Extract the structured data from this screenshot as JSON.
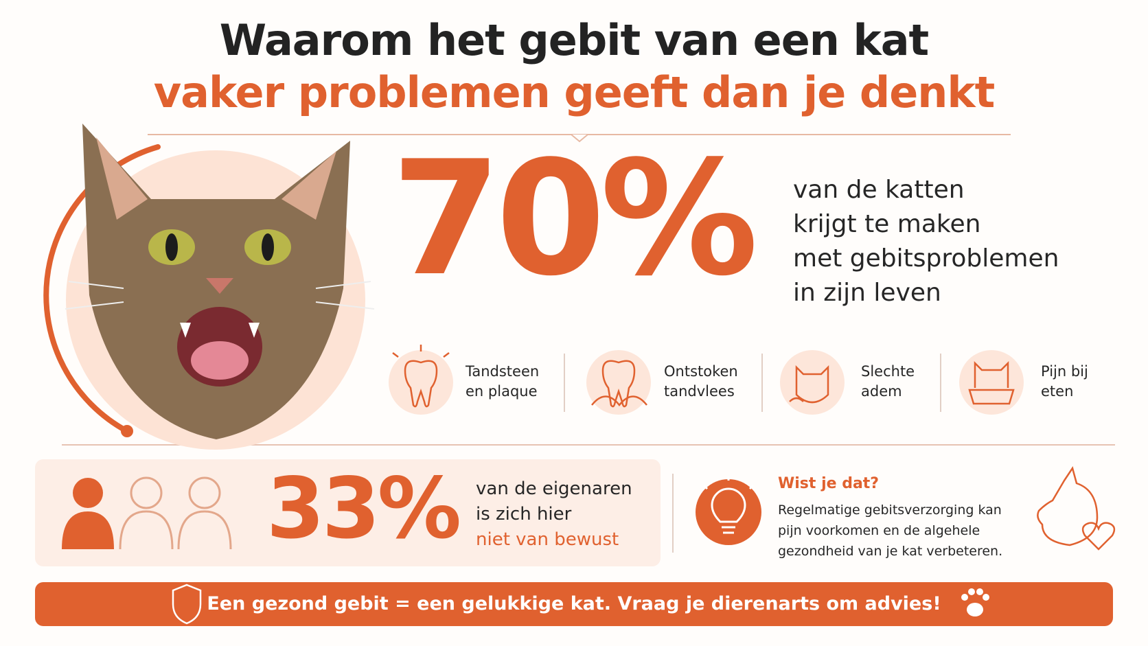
{
  "header": {
    "title_line1": "Waarom het gebit van een kat",
    "title_line2": "vaker problemen geeft dan je denkt"
  },
  "main_stat": {
    "value": "70%",
    "text": [
      "van de katten",
      "krijgt te maken",
      "met gebitsproblemen",
      "in zijn leven"
    ]
  },
  "problems": [
    {
      "label": [
        "Tandsteen",
        "en plaque"
      ]
    },
    {
      "label": [
        "Ontstoken",
        "tandvlees"
      ]
    },
    {
      "label": [
        "Slechte",
        "adem"
      ]
    },
    {
      "label": [
        "Pijn bij",
        "eten"
      ]
    }
  ],
  "owner_stat": {
    "value": "33%",
    "text": [
      "van de eigenaren",
      "is zich hier"
    ],
    "highlight": "niet van bewust"
  },
  "tip": {
    "title": "Wist je dat?",
    "text": [
      "Regelmatige gebitsverzorging kan",
      "pijn voorkomen en de algehele",
      "gezondheid van je kat verbeteren."
    ]
  },
  "footer": {
    "text": "Een gezond gebit = een gelukkige kat. Vraag je dierenarts om advies!"
  }
}
